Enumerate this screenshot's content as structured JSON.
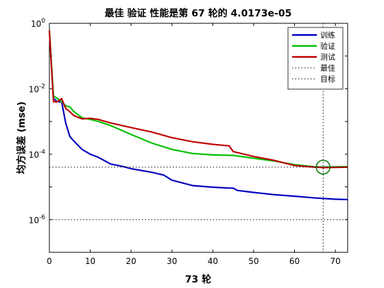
{
  "chart_data": {
    "type": "line",
    "title": "最佳 验证 性能是第 67 轮的 4.0173e-05",
    "xlabel": "73 轮",
    "ylabel": "均方误差 (mse)",
    "xlim": [
      0,
      73
    ],
    "ylim": [
      1e-07,
      1
    ],
    "y_scale": "log",
    "x_ticks": [
      "0",
      "10",
      "20",
      "30",
      "40",
      "50",
      "60",
      "70"
    ],
    "y_ticks": [
      {
        "value": 1,
        "base": "10",
        "exp": "0"
      },
      {
        "value": 0.01,
        "base": "10",
        "exp": "-2"
      },
      {
        "value": 0.0001,
        "base": "10",
        "exp": "-4"
      },
      {
        "value": 1e-06,
        "base": "10",
        "exp": "-6"
      }
    ],
    "grid": false,
    "legend_position": "top-right",
    "legend": [
      "训练",
      "验证",
      "测试",
      "最佳",
      "目标"
    ],
    "series": [
      {
        "name": "训练",
        "color": "#0000c0",
        "x": [
          0,
          1,
          2,
          3,
          4,
          5,
          6,
          8,
          10,
          12,
          15,
          18,
          20,
          25,
          28,
          30,
          35,
          40,
          44,
          45,
          46,
          50,
          55,
          60,
          65,
          70,
          73
        ],
        "y": [
          0.6,
          0.005,
          0.004,
          0.004,
          0.0009,
          0.00035,
          0.00025,
          0.00014,
          0.0001,
          8e-05,
          5e-05,
          4.2e-05,
          3.6e-05,
          2.8e-05,
          2.3e-05,
          1.6e-05,
          1.1e-05,
          9.8e-06,
          9.2e-06,
          9.2e-06,
          7.8e-06,
          6.8e-06,
          5.8e-06,
          5.2e-06,
          4.6e-06,
          4.2e-06,
          4.1e-06
        ]
      },
      {
        "name": "验证",
        "color": "#00c000",
        "x": [
          0,
          1,
          2,
          3,
          4,
          5,
          6,
          8,
          10,
          12,
          15,
          20,
          25,
          30,
          35,
          40,
          45,
          50,
          55,
          60,
          65,
          67,
          70,
          73
        ],
        "y": [
          0.6,
          0.006,
          0.005,
          0.004,
          0.003,
          0.0028,
          0.002,
          0.0013,
          0.00115,
          0.001,
          0.00075,
          0.0004,
          0.00022,
          0.00014,
          0.000105,
          9.5e-05,
          9.2e-05,
          7.5e-05,
          6.2e-05,
          4.8e-05,
          4.1e-05,
          4.02e-05,
          4.1e-05,
          4.15e-05
        ]
      },
      {
        "name": "测试",
        "color": "#c00000",
        "x": [
          0,
          1,
          2,
          3,
          4,
          5,
          6,
          8,
          10,
          12,
          15,
          20,
          25,
          30,
          35,
          40,
          44,
          45,
          50,
          55,
          60,
          65,
          67,
          70,
          73
        ],
        "y": [
          0.6,
          0.004,
          0.004,
          0.005,
          0.0025,
          0.002,
          0.0015,
          0.0012,
          0.00125,
          0.00115,
          0.0009,
          0.00065,
          0.00048,
          0.00032,
          0.00024,
          0.0002,
          0.00018,
          0.00012,
          8.5e-05,
          6.5e-05,
          4.5e-05,
          4e-05,
          3.9e-05,
          3.95e-05,
          4e-05
        ]
      }
    ],
    "best": {
      "epoch": 67,
      "value": 4.0173e-05,
      "color": "#007a00"
    },
    "goal": {
      "value": 1e-06
    }
  }
}
